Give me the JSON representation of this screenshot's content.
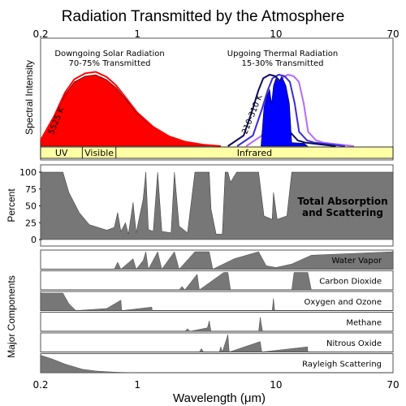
{
  "chart_data": {
    "type": "area",
    "title": "Radiation Transmitted by the Atmosphere",
    "xlabel": "Wavelength (μm)",
    "x_scale": "log",
    "xlim": [
      0.2,
      70
    ],
    "top_ticks": [
      "0.2",
      "1",
      "10",
      "70"
    ],
    "bottom_ticks": [
      "0.2",
      "1",
      "10",
      "70"
    ],
    "top_panel": {
      "ylabel": "Spectral Intensity",
      "solar_label_1": "Downgoing Solar Radiation",
      "solar_label_2": "70-75% Transmitted",
      "thermal_label_1": "Upgoing Thermal Radiation",
      "thermal_label_2": "15-30% Transmitted",
      "solar_curve_label": "5525 K",
      "thermal_curve_label": "210-310 K",
      "colors": {
        "solar": "#ff0000",
        "thermal": "#0000ff",
        "curve_210": "#b26bff",
        "curve_250": "#3b2bd6",
        "curve_310": "#0b0b5e",
        "band": "#ffffa6"
      },
      "bands": [
        "UV",
        "Visible",
        "Infrared"
      ],
      "band_edges_um": [
        0.2,
        0.4,
        0.7,
        70
      ],
      "solar_envelope": [
        [
          0.2,
          0.08
        ],
        [
          0.25,
          0.4
        ],
        [
          0.3,
          0.72
        ],
        [
          0.35,
          0.9
        ],
        [
          0.42,
          0.98
        ],
        [
          0.5,
          1.0
        ],
        [
          0.6,
          0.93
        ],
        [
          0.7,
          0.82
        ],
        [
          0.85,
          0.62
        ],
        [
          1.0,
          0.45
        ],
        [
          1.3,
          0.26
        ],
        [
          1.7,
          0.13
        ],
        [
          2.2,
          0.06
        ],
        [
          3,
          0.02
        ],
        [
          4,
          0.0
        ]
      ],
      "thermal_envelope": [
        [
          5,
          0.0
        ],
        [
          6.5,
          0.15
        ],
        [
          7.5,
          0.5
        ],
        [
          8.3,
          0.78
        ],
        [
          9,
          0.95
        ],
        [
          10,
          1.0
        ],
        [
          11,
          0.98
        ],
        [
          12,
          0.9
        ],
        [
          13,
          0.6
        ],
        [
          14,
          0.2
        ],
        [
          16,
          0.08
        ],
        [
          18,
          0.05
        ],
        [
          22,
          0.03
        ],
        [
          30,
          0.0
        ]
      ]
    },
    "middle_panel": {
      "ylabel": "Percent",
      "yticks": [
        "100",
        "75",
        "50",
        "25",
        "0"
      ],
      "ylim": [
        0,
        100
      ],
      "label_1": "Total Absorption",
      "label_2": "and Scattering",
      "series": [
        [
          0.2,
          100
        ],
        [
          0.29,
          100
        ],
        [
          0.32,
          70
        ],
        [
          0.38,
          40
        ],
        [
          0.45,
          22
        ],
        [
          0.6,
          14
        ],
        [
          0.68,
          18
        ],
        [
          0.72,
          40
        ],
        [
          0.76,
          12
        ],
        [
          0.82,
          25
        ],
        [
          0.86,
          8
        ],
        [
          0.93,
          55
        ],
        [
          0.98,
          10
        ],
        [
          1.1,
          60
        ],
        [
          1.15,
          100
        ],
        [
          1.2,
          15
        ],
        [
          1.3,
          12
        ],
        [
          1.4,
          100
        ],
        [
          1.5,
          12
        ],
        [
          1.75,
          10
        ],
        [
          1.85,
          100
        ],
        [
          2.0,
          20
        ],
        [
          2.3,
          10
        ],
        [
          2.6,
          100
        ],
        [
          3.3,
          100
        ],
        [
          3.4,
          45
        ],
        [
          3.7,
          8
        ],
        [
          4.1,
          8
        ],
        [
          4.3,
          100
        ],
        [
          4.5,
          100
        ],
        [
          4.7,
          85
        ],
        [
          5.2,
          100
        ],
        [
          7.5,
          100
        ],
        [
          8.2,
          35
        ],
        [
          9.4,
          30
        ],
        [
          9.6,
          70
        ],
        [
          10.2,
          30
        ],
        [
          12,
          35
        ],
        [
          13,
          100
        ],
        [
          70,
          100
        ]
      ]
    },
    "components": [
      {
        "name": "Water Vapor",
        "data": [
          [
            0.2,
            0
          ],
          [
            0.68,
            0
          ],
          [
            0.72,
            40
          ],
          [
            0.76,
            0
          ],
          [
            0.93,
            60
          ],
          [
            0.98,
            0
          ],
          [
            1.1,
            50
          ],
          [
            1.15,
            100
          ],
          [
            1.2,
            0
          ],
          [
            1.4,
            100
          ],
          [
            1.5,
            0
          ],
          [
            1.85,
            100
          ],
          [
            2.0,
            0
          ],
          [
            2.6,
            100
          ],
          [
            3.3,
            100
          ],
          [
            3.5,
            0
          ],
          [
            5.0,
            60
          ],
          [
            7.5,
            100
          ],
          [
            8.5,
            20
          ],
          [
            10,
            10
          ],
          [
            13,
            30
          ],
          [
            18,
            80
          ],
          [
            70,
            100
          ]
        ]
      },
      {
        "name": "Carbon Dioxide",
        "data": [
          [
            0.2,
            0
          ],
          [
            2.0,
            0
          ],
          [
            2.1,
            20
          ],
          [
            2.2,
            0
          ],
          [
            2.7,
            90
          ],
          [
            2.8,
            0
          ],
          [
            4.2,
            100
          ],
          [
            4.5,
            100
          ],
          [
            4.7,
            0
          ],
          [
            13,
            0
          ],
          [
            13.5,
            100
          ],
          [
            17,
            100
          ],
          [
            18,
            0
          ],
          [
            70,
            0
          ]
        ]
      },
      {
        "name": "Oxygen and Ozone",
        "data": [
          [
            0.2,
            100
          ],
          [
            0.29,
            100
          ],
          [
            0.32,
            40
          ],
          [
            0.36,
            0
          ],
          [
            0.6,
            12
          ],
          [
            0.76,
            60
          ],
          [
            0.77,
            0
          ],
          [
            1.27,
            20
          ],
          [
            1.28,
            0
          ],
          [
            9.4,
            0
          ],
          [
            9.6,
            70
          ],
          [
            9.8,
            0
          ],
          [
            70,
            0
          ]
        ]
      },
      {
        "name": "Methane",
        "data": [
          [
            0.2,
            0
          ],
          [
            2.2,
            0
          ],
          [
            2.3,
            15
          ],
          [
            2.4,
            0
          ],
          [
            3.2,
            20
          ],
          [
            3.3,
            60
          ],
          [
            3.4,
            0
          ],
          [
            7.5,
            0
          ],
          [
            7.7,
            80
          ],
          [
            8.0,
            0
          ],
          [
            70,
            0
          ]
        ]
      },
      {
        "name": "Nitrous Oxide",
        "data": [
          [
            0.2,
            0
          ],
          [
            2.8,
            0
          ],
          [
            2.9,
            20
          ],
          [
            3.0,
            0
          ],
          [
            3.9,
            0
          ],
          [
            4.0,
            30
          ],
          [
            4.1,
            0
          ],
          [
            4.5,
            100
          ],
          [
            4.6,
            0
          ],
          [
            7.7,
            60
          ],
          [
            7.9,
            0
          ],
          [
            16.9,
            30
          ],
          [
            17,
            0
          ],
          [
            70,
            0
          ]
        ]
      },
      {
        "name": "Rayleigh Scattering",
        "data": [
          [
            0.2,
            100
          ],
          [
            0.24,
            80
          ],
          [
            0.3,
            50
          ],
          [
            0.4,
            20
          ],
          [
            0.5,
            10
          ],
          [
            0.7,
            3
          ],
          [
            1.0,
            0
          ],
          [
            70,
            0
          ]
        ]
      }
    ]
  }
}
